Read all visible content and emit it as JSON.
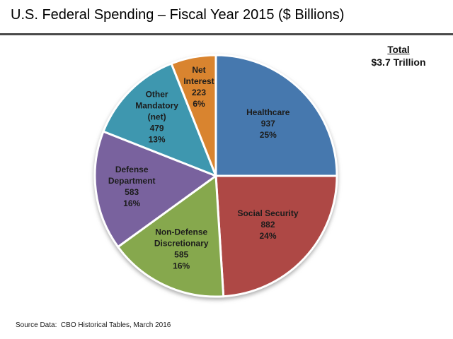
{
  "header": {
    "title": "U.S. Federal Spending – Fiscal Year 2015 ($ Billions)"
  },
  "total_box": {
    "label": "Total",
    "value": "$3.7 Trillion"
  },
  "footer": {
    "source": "Source Data:  CBO Historical Tables, March 2016"
  },
  "chart_data": {
    "type": "pie",
    "title": "U.S. Federal Spending – Fiscal Year 2015 ($ Billions)",
    "unit": "$ Billions",
    "total_label": "Total",
    "total_value": "$3.7 Trillion",
    "start_angle_deg": -90,
    "direction": "clockwise",
    "legend": "none",
    "labels_inside_slices": true,
    "categories": [
      "Healthcare",
      "Social Security",
      "Non-Defense Discretionary",
      "Defense Department",
      "Other Mandatory (net)",
      "Net Interest"
    ],
    "values": [
      937,
      882,
      585,
      583,
      479,
      223
    ],
    "percents": [
      25,
      24,
      16,
      16,
      13,
      6
    ],
    "colors": [
      "#4678AE",
      "#AE4845",
      "#86A84D",
      "#79629E",
      "#3E97AF",
      "#D9842F"
    ],
    "slices": [
      {
        "name": "Healthcare",
        "name_lines": [
          "Healthcare"
        ],
        "value": 937,
        "pct": 25,
        "color": "#4678AE",
        "label_r": 0.61
      },
      {
        "name": "Social Security",
        "name_lines": [
          "Social Security"
        ],
        "value": 882,
        "pct": 24,
        "color": "#AE4845",
        "label_r": 0.59
      },
      {
        "name": "Non-Defense Discretionary",
        "name_lines": [
          "Non-Defense",
          "Discretionary"
        ],
        "value": 585,
        "pct": 16,
        "color": "#86A84D",
        "label_r": 0.67
      },
      {
        "name": "Defense Department",
        "name_lines": [
          "Defense",
          "Department"
        ],
        "value": 583,
        "pct": 16,
        "color": "#79629E",
        "label_r": 0.7
      },
      {
        "name": "Other Mandatory (net)",
        "name_lines": [
          "Other",
          "Mandatory",
          "(net)"
        ],
        "value": 479,
        "pct": 13,
        "color": "#3E97AF",
        "label_r": 0.69
      },
      {
        "name": "Net Interest",
        "name_lines": [
          "Net",
          "Interest"
        ],
        "value": 223,
        "pct": 6,
        "color": "#D9842F",
        "label_r": 0.75
      }
    ],
    "source": "Source Data:  CBO Historical Tables, March 2016"
  }
}
